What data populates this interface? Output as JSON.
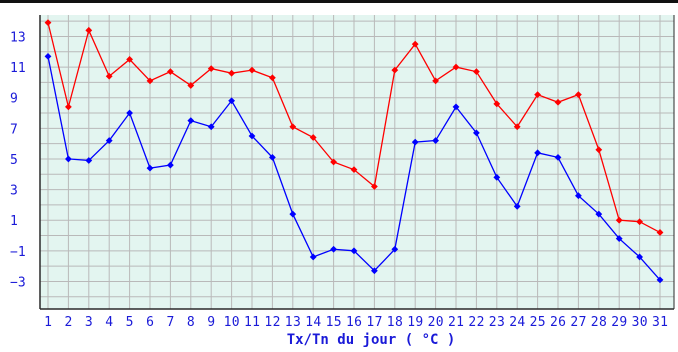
{
  "chart_data": {
    "type": "line",
    "xlabel": "Tx/Tn du jour ( °C )",
    "ylabel": "",
    "categories": [
      "1",
      "2",
      "3",
      "4",
      "5",
      "6",
      "7",
      "8",
      "9",
      "10",
      "11",
      "12",
      "13",
      "14",
      "15",
      "16",
      "17",
      "18",
      "19",
      "20",
      "21",
      "22",
      "23",
      "24",
      "25",
      "26",
      "27",
      "28",
      "29",
      "30",
      "31"
    ],
    "ylim": [
      -4.8,
      14.4
    ],
    "yticks": [
      13,
      11,
      9,
      7,
      5,
      3,
      1,
      -1,
      -3
    ],
    "grid": true,
    "series": [
      {
        "color": "#ff0000",
        "values": [
          13.9,
          8.4,
          13.4,
          10.4,
          11.5,
          10.1,
          10.7,
          9.8,
          10.9,
          10.6,
          10.8,
          10.3,
          7.1,
          6.4,
          4.8,
          4.3,
          3.2,
          10.8,
          12.5,
          10.1,
          11.0,
          10.7,
          8.6,
          7.1,
          9.2,
          8.7,
          9.2,
          5.6,
          1.0,
          0.9,
          0.2
        ]
      },
      {
        "color": "#0000ff",
        "values": [
          11.7,
          5.0,
          4.9,
          6.2,
          8.0,
          4.4,
          4.6,
          7.5,
          7.1,
          8.8,
          6.5,
          5.1,
          1.4,
          -1.4,
          -0.9,
          -1.0,
          -2.3,
          -0.9,
          6.1,
          6.2,
          8.4,
          6.7,
          3.8,
          1.9,
          5.4,
          5.1,
          2.6,
          1.4,
          -0.2,
          -1.4,
          -2.9
        ]
      }
    ]
  },
  "colors": {
    "background": "#e3f5f0",
    "grid": "#b9b9b9",
    "axis": "#2a2a2a",
    "text": "#1a1ad8"
  }
}
